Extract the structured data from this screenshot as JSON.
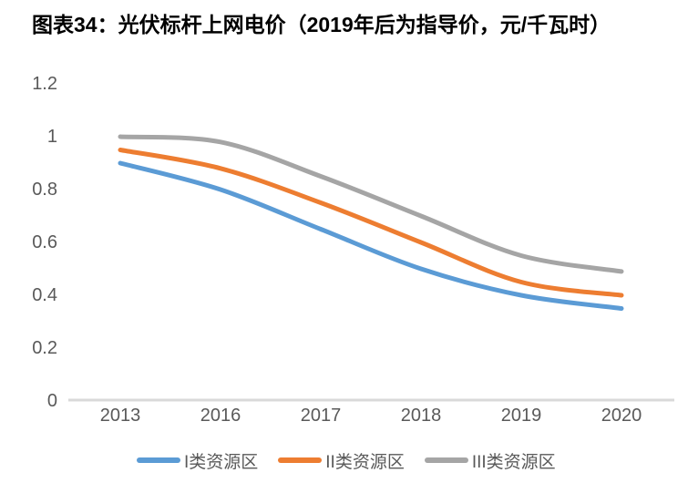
{
  "title": "图表34：光伏标杆上网电价（2019年后为指导价，元/千瓦时）",
  "chart_data": {
    "type": "line",
    "title": "图表34：光伏标杆上网电价（2019年后为指导价，元/千瓦时）",
    "categories": [
      "2013",
      "2016",
      "2017",
      "2018",
      "2019",
      "2020"
    ],
    "series": [
      {
        "name": "I类资源区",
        "color": "#5B9BD5",
        "values": [
          0.9,
          0.8,
          0.65,
          0.5,
          0.4,
          0.35
        ]
      },
      {
        "name": "II类资源区",
        "color": "#ED7D31",
        "values": [
          0.95,
          0.88,
          0.75,
          0.6,
          0.45,
          0.4
        ]
      },
      {
        "name": "III类资源区",
        "color": "#A5A5A5",
        "values": [
          1.0,
          0.98,
          0.85,
          0.7,
          0.55,
          0.49
        ]
      }
    ],
    "xlabel": "",
    "ylabel": "",
    "ylim": [
      0,
      1.2
    ],
    "ytick_step": 0.2,
    "yticks": [
      "1.2",
      "1",
      "0.8",
      "0.6",
      "0.4",
      "0.2",
      "0"
    ],
    "grid": false,
    "smoothed_lines": true,
    "legend_position": "bottom",
    "axis_line_color": "#D9D9D9",
    "tick_label_color": "#595959",
    "title_color": "#000000",
    "background_color": "#FFFFFF"
  }
}
